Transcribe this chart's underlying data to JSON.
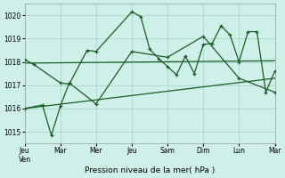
{
  "xlabel": "Pression niveau de la mer( hPa )",
  "bg_color": "#cff0e8",
  "grid_color": "#aad8ce",
  "line_color": "#1a5c28",
  "ylim": [
    1014.5,
    1020.5
  ],
  "yticks": [
    1015,
    1016,
    1017,
    1018,
    1019,
    1020
  ],
  "xlim": [
    0,
    14
  ],
  "x_tick_positions": [
    0,
    2,
    4,
    6,
    8,
    10,
    12,
    14
  ],
  "x_tick_labels": [
    "Jeu\nVen",
    "Mar",
    "Mer",
    "Jeu",
    "Sam",
    "Dim",
    "Lun",
    "Mar"
  ],
  "series_upper": {
    "x": [
      0,
      0.5,
      2,
      2.5,
      3.5,
      4,
      6,
      6.5,
      7,
      7.5,
      8,
      8.5,
      9,
      9.5,
      10,
      10.5,
      11,
      11.5,
      12,
      12.5,
      13,
      13.5,
      14
    ],
    "y": [
      1018.1,
      1017.9,
      1017.1,
      1017.05,
      1018.5,
      1018.45,
      1020.15,
      1019.95,
      1018.55,
      1018.15,
      1017.8,
      1017.45,
      1018.25,
      1017.5,
      1018.75,
      1018.8,
      1019.55,
      1019.15,
      1018.0,
      1019.3,
      1019.3,
      1016.7,
      1017.6
    ]
  },
  "series_lower": {
    "x": [
      0,
      1,
      1.5,
      2,
      2.5,
      4,
      6,
      8,
      10,
      12,
      14
    ],
    "y": [
      1016.0,
      1016.15,
      1014.85,
      1016.1,
      1017.1,
      1016.2,
      1018.45,
      1018.2,
      1019.1,
      1017.3,
      1016.7
    ]
  },
  "trend_upper": {
    "x": [
      0,
      14
    ],
    "y": [
      1017.95,
      1018.05
    ]
  },
  "trend_lower": {
    "x": [
      0,
      14
    ],
    "y": [
      1016.0,
      1017.3
    ]
  }
}
